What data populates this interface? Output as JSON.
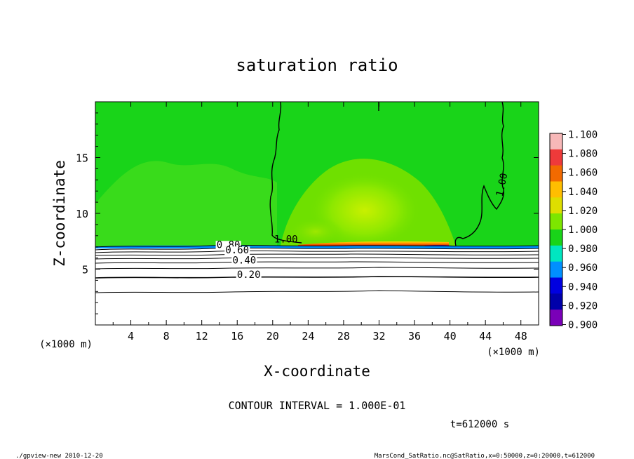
{
  "chart_data": {
    "type": "heatmap",
    "title": "saturation ratio",
    "xlabel": "X-coordinate",
    "ylabel": "Z-coordinate",
    "x_unit": "(×1000 m)",
    "y_unit": "(×1000 m)",
    "xlim": [
      0,
      50
    ],
    "ylim": [
      0,
      20
    ],
    "x_ticks": [
      4,
      8,
      12,
      16,
      20,
      24,
      28,
      32,
      36,
      40,
      44,
      48
    ],
    "y_ticks": [
      5,
      10,
      15
    ],
    "colorbar": {
      "levels": [
        "1.100",
        "1.080",
        "1.060",
        "1.040",
        "1.020",
        "1.000",
        "0.980",
        "0.960",
        "0.940",
        "0.920",
        "0.900"
      ],
      "colors": [
        "#f7b8b8",
        "#ee3a3a",
        "#f26a00",
        "#ffbe00",
        "#dede00",
        "#7de600",
        "#19d419",
        "#00e6c0",
        "#0090ff",
        "#0000e0",
        "#0000aa",
        "#7a00b8"
      ]
    },
    "contour_labels": [
      {
        "text": "1.00",
        "x": 21.5,
        "y": 7.4
      },
      {
        "text": "1.00",
        "x": 46.2,
        "y": 12.5
      },
      {
        "text": "0.80",
        "x": 15.0,
        "y": 6.9
      },
      {
        "text": "0.60",
        "x": 16.0,
        "y": 6.4
      },
      {
        "text": "0.40",
        "x": 16.8,
        "y": 5.5
      },
      {
        "text": "0.20",
        "x": 17.3,
        "y": 4.2
      }
    ],
    "contour_interval": "CONTOUR INTERVAL = 1.000E-01",
    "time_label": "t=612000 s",
    "footer_left": "./gpview-new  2010-12-20",
    "footer_right": "MarsCond_SatRatio.nc@SatRatio,x=0:50000,z=0:20000,t=612000"
  }
}
